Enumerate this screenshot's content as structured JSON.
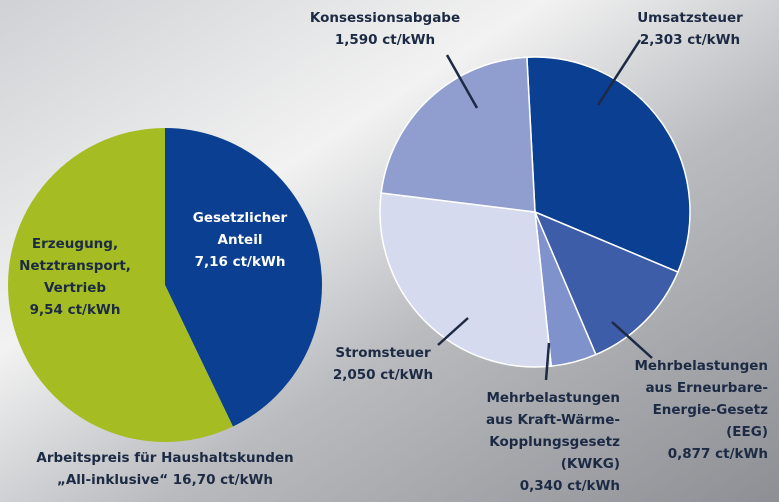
{
  "chart_data": [
    {
      "type": "pie",
      "categories": [
        [
          "Gesetzlicher",
          "Anteil"
        ],
        [
          "Erzeugung,",
          "Netztransport,",
          "Vertrieb"
        ]
      ],
      "values": [
        7.16,
        9.54
      ],
      "value_labels": [
        "7,16 ct/kWh",
        "9,54 ct/kWh"
      ],
      "colors": [
        "#0b3f91",
        "#a5bd22"
      ],
      "caption": [
        "Arbeitspreis für Haushaltskunden",
        "„All-inklusive“ 16,70 ct/kWh"
      ]
    },
    {
      "type": "pie",
      "categories": [
        [
          "Umsatzsteuer"
        ],
        [
          "Mehrbelastungen",
          "aus Erneurbare-",
          "Energie-Gesetz",
          "(EEG)"
        ],
        [
          "Mehrbelastungen",
          "aus Kraft-Wärme-",
          "Kopplungsgesetz",
          "(KWKG)"
        ],
        [
          "Stromsteuer"
        ],
        [
          "Konsessionsabgabe"
        ]
      ],
      "values": [
        2.303,
        0.877,
        0.34,
        2.05,
        1.59
      ],
      "value_labels": [
        "2,303 ct/kWh",
        "0,877 ct/kWh",
        "0,340 ct/kWh",
        "2,050 ct/kWh",
        "1,590 ct/kWh"
      ],
      "colors": [
        "#0b3f91",
        "#3e5da8",
        "#7f92cb",
        "#d6daee",
        "#909ecf"
      ]
    }
  ]
}
